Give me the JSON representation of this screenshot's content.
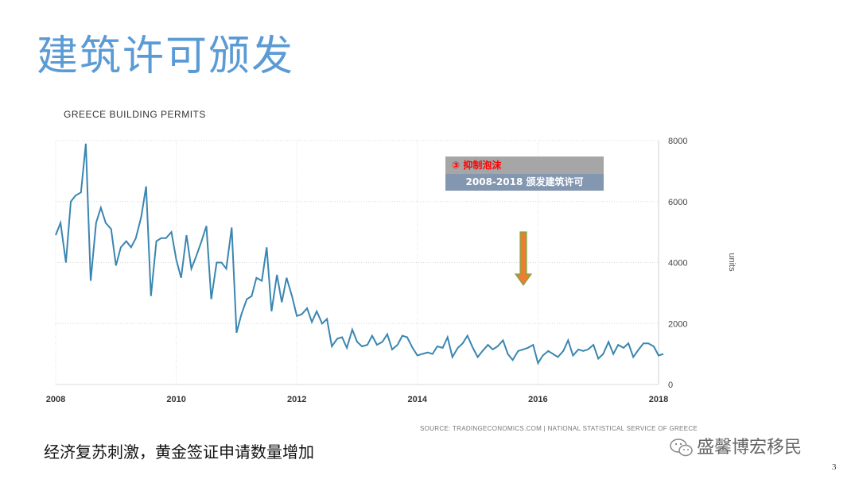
{
  "slide": {
    "title": "建筑许可颁发",
    "bottom_text": "经济复苏刺激，黄金签证申请数量增加",
    "watermark": "盛馨博宏移民",
    "page_number": "3"
  },
  "annotation": {
    "line1": "③  抑制泡沫",
    "line2": "2008-2018 颁发建筑许可",
    "arrow_icon": "down-arrow-icon",
    "arrow_color": "#ed7d31",
    "arrow_border": "#70ad47"
  },
  "chart_data": {
    "type": "line",
    "title": "GREECE BUILDING PERMITS",
    "source": "SOURCE: TRADINGECONOMICS.COM  |  NATIONAL STATISTICAL SERVICE OF GREECE",
    "ylabel": "units",
    "xlabel": "",
    "ylim": [
      0,
      8000
    ],
    "xlim": [
      2008,
      2018
    ],
    "y_ticks": [
      "8000",
      "6000",
      "4000",
      "2000",
      "0"
    ],
    "x_ticks": [
      "2008",
      "2010",
      "2012",
      "2014",
      "2016",
      "2018"
    ],
    "grid": true,
    "color": "#3a86b0",
    "series": [
      {
        "values": [
          [
            2008.0,
            4900
          ],
          [
            2008.08,
            5300
          ],
          [
            2008.17,
            4000
          ],
          [
            2008.25,
            6000
          ],
          [
            2008.33,
            6200
          ],
          [
            2008.42,
            6300
          ],
          [
            2008.5,
            7900
          ],
          [
            2008.58,
            3400
          ],
          [
            2008.67,
            5300
          ],
          [
            2008.75,
            5800
          ],
          [
            2008.83,
            5300
          ],
          [
            2008.92,
            5100
          ],
          [
            2009.0,
            3900
          ],
          [
            2009.08,
            4500
          ],
          [
            2009.17,
            4700
          ],
          [
            2009.25,
            4500
          ],
          [
            2009.33,
            4800
          ],
          [
            2009.42,
            5500
          ],
          [
            2009.5,
            6500
          ],
          [
            2009.58,
            2900
          ],
          [
            2009.67,
            4700
          ],
          [
            2009.75,
            4800
          ],
          [
            2009.83,
            4800
          ],
          [
            2009.92,
            5000
          ],
          [
            2010.0,
            4100
          ],
          [
            2010.08,
            3500
          ],
          [
            2010.17,
            4900
          ],
          [
            2010.25,
            3800
          ],
          [
            2010.33,
            4200
          ],
          [
            2010.42,
            4700
          ],
          [
            2010.5,
            5200
          ],
          [
            2010.58,
            2800
          ],
          [
            2010.67,
            4000
          ],
          [
            2010.75,
            4000
          ],
          [
            2010.83,
            3800
          ],
          [
            2010.92,
            5150
          ],
          [
            2011.0,
            1700
          ],
          [
            2011.08,
            2300
          ],
          [
            2011.17,
            2800
          ],
          [
            2011.25,
            2900
          ],
          [
            2011.33,
            3500
          ],
          [
            2011.42,
            3400
          ],
          [
            2011.5,
            4500
          ],
          [
            2011.58,
            2400
          ],
          [
            2011.67,
            3600
          ],
          [
            2011.75,
            2700
          ],
          [
            2011.83,
            3500
          ],
          [
            2011.92,
            2900
          ],
          [
            2012.0,
            2250
          ],
          [
            2012.08,
            2300
          ],
          [
            2012.17,
            2500
          ],
          [
            2012.25,
            2050
          ],
          [
            2012.33,
            2400
          ],
          [
            2012.42,
            2000
          ],
          [
            2012.5,
            2150
          ],
          [
            2012.58,
            1250
          ],
          [
            2012.67,
            1500
          ],
          [
            2012.75,
            1550
          ],
          [
            2012.83,
            1200
          ],
          [
            2012.92,
            1800
          ],
          [
            2013.0,
            1400
          ],
          [
            2013.08,
            1250
          ],
          [
            2013.17,
            1300
          ],
          [
            2013.25,
            1600
          ],
          [
            2013.33,
            1300
          ],
          [
            2013.42,
            1400
          ],
          [
            2013.5,
            1650
          ],
          [
            2013.58,
            1150
          ],
          [
            2013.67,
            1300
          ],
          [
            2013.75,
            1600
          ],
          [
            2013.83,
            1550
          ],
          [
            2013.92,
            1200
          ],
          [
            2014.0,
            950
          ],
          [
            2014.08,
            1000
          ],
          [
            2014.17,
            1050
          ],
          [
            2014.25,
            1000
          ],
          [
            2014.33,
            1250
          ],
          [
            2014.42,
            1200
          ],
          [
            2014.5,
            1550
          ],
          [
            2014.58,
            900
          ],
          [
            2014.67,
            1200
          ],
          [
            2014.75,
            1350
          ],
          [
            2014.83,
            1600
          ],
          [
            2014.92,
            1200
          ],
          [
            2015.0,
            900
          ],
          [
            2015.08,
            1100
          ],
          [
            2015.17,
            1300
          ],
          [
            2015.25,
            1150
          ],
          [
            2015.33,
            1250
          ],
          [
            2015.42,
            1450
          ],
          [
            2015.5,
            1000
          ],
          [
            2015.58,
            800
          ],
          [
            2015.67,
            1100
          ],
          [
            2015.75,
            1150
          ],
          [
            2015.83,
            1200
          ],
          [
            2015.92,
            1300
          ],
          [
            2016.0,
            700
          ],
          [
            2016.08,
            950
          ],
          [
            2016.17,
            1100
          ],
          [
            2016.25,
            1000
          ],
          [
            2016.33,
            900
          ],
          [
            2016.42,
            1100
          ],
          [
            2016.5,
            1450
          ],
          [
            2016.58,
            950
          ],
          [
            2016.67,
            1150
          ],
          [
            2016.75,
            1100
          ],
          [
            2016.83,
            1150
          ],
          [
            2016.92,
            1300
          ],
          [
            2017.0,
            850
          ],
          [
            2017.08,
            1000
          ],
          [
            2017.17,
            1400
          ],
          [
            2017.25,
            1000
          ],
          [
            2017.33,
            1300
          ],
          [
            2017.42,
            1200
          ],
          [
            2017.5,
            1350
          ],
          [
            2017.58,
            900
          ],
          [
            2017.67,
            1150
          ],
          [
            2017.75,
            1350
          ],
          [
            2017.83,
            1350
          ],
          [
            2017.92,
            1250
          ],
          [
            2018.0,
            950
          ],
          [
            2018.08,
            1000
          ]
        ]
      }
    ]
  }
}
